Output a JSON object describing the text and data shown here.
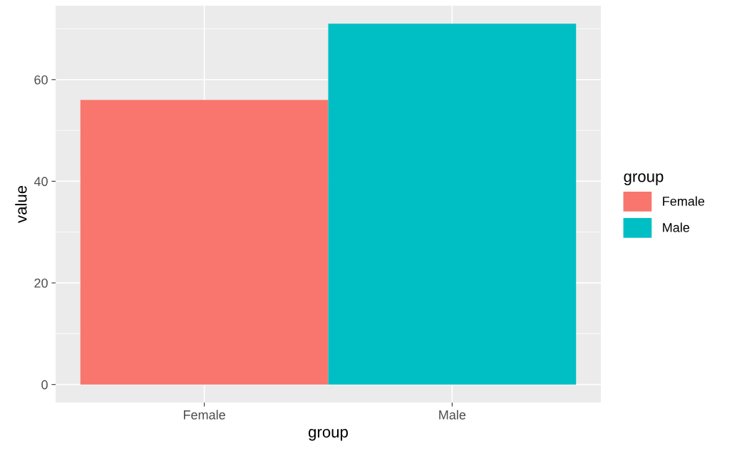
{
  "chart_data": {
    "type": "bar",
    "xlabel": "group",
    "ylabel": "value",
    "legend_title": "group",
    "categories": [
      "Female",
      "Male"
    ],
    "series": [
      {
        "name": "Female",
        "color": "#f8766d",
        "values": [
          56,
          null
        ]
      },
      {
        "name": "Male",
        "color": "#00bfc4",
        "values": [
          null,
          71
        ]
      }
    ],
    "ylim": [
      -3.55,
      74.55
    ],
    "yticks": [
      0,
      20,
      40,
      60
    ],
    "grid": true,
    "legend": "right"
  }
}
